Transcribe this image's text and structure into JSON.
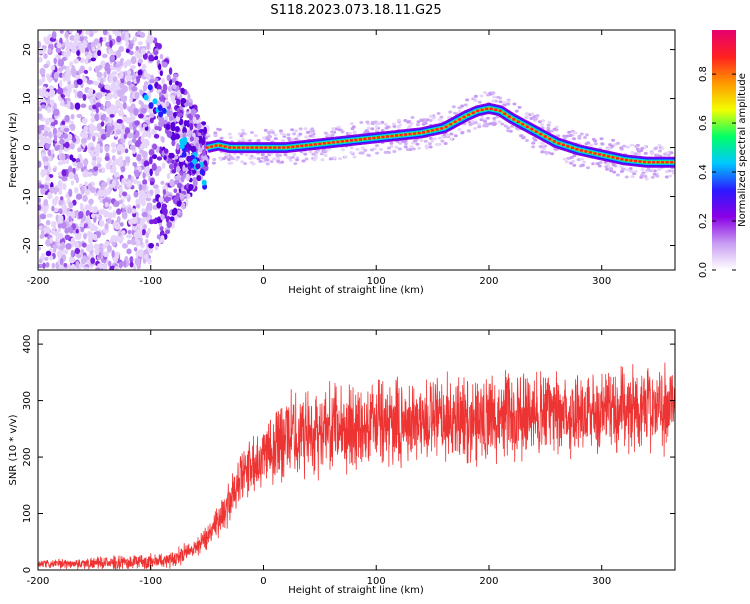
{
  "figure": {
    "title": "S118.2023.073.18.11.G25"
  },
  "chart_data": [
    {
      "type": "heatmap",
      "title": "",
      "xlabel": "Height of straight line (km)",
      "ylabel": "Frequency (Hz)",
      "xlim": [
        -200,
        365
      ],
      "ylim": [
        -25,
        24
      ],
      "x_ticks": [
        "-200",
        "-100",
        "0",
        "100",
        "200",
        "300"
      ],
      "x_tick_values": [
        -200,
        -100,
        0,
        100,
        200,
        300
      ],
      "y_ticks": [
        "20",
        "10",
        "0",
        "-10",
        "-20"
      ],
      "y_tick_values": [
        20,
        10,
        0,
        -10,
        -20
      ],
      "colorbar": {
        "label": "Normalized spectral amplitude",
        "range": [
          0,
          0.98
        ],
        "ticks": [
          "0.0",
          "0.2",
          "0.4",
          "0.6",
          "0.8"
        ],
        "tick_values": [
          0.0,
          0.2,
          0.4,
          0.6,
          0.8
        ],
        "colormap": [
          "#ffffff",
          "#c89cf2",
          "#8a00e6",
          "#2a1aff",
          "#00c8ff",
          "#00ff66",
          "#f2ff00",
          "#ff9900",
          "#ff2020",
          "#e60070"
        ]
      },
      "ridge": {
        "x": [
          -50,
          -40,
          -30,
          -20,
          0,
          20,
          40,
          60,
          80,
          100,
          120,
          140,
          160,
          180,
          190,
          200,
          210,
          220,
          240,
          260,
          280,
          300,
          320,
          340,
          365
        ],
        "y": [
          0,
          0.5,
          0,
          0,
          0,
          0,
          0.5,
          1,
          1.5,
          2,
          2.5,
          3,
          4,
          6.5,
          7.5,
          8,
          7.5,
          6,
          3.5,
          1,
          -0.5,
          -1.5,
          -2.5,
          -3,
          -3
        ]
      },
      "noise_region_x": [
        -200,
        -100
      ],
      "transition_region_x": [
        -100,
        -50
      ]
    },
    {
      "type": "line",
      "title": "",
      "xlabel": "Height of straight line (km)",
      "ylabel": "SNR (10 * v/v)",
      "xlim": [
        -200,
        365
      ],
      "ylim": [
        0,
        425
      ],
      "x_ticks": [
        "-200",
        "-100",
        "0",
        "100",
        "200",
        "300"
      ],
      "x_tick_values": [
        -200,
        -100,
        0,
        100,
        200,
        300
      ],
      "y_ticks": [
        "0",
        "100",
        "200",
        "300",
        "400"
      ],
      "y_tick_values": [
        0,
        100,
        200,
        300,
        400
      ],
      "line_color": "#ee3333",
      "series": [
        {
          "x": [
            -200,
            -150,
            -100,
            -80,
            -60,
            -50,
            -40,
            -30,
            -20,
            -10,
            0,
            10,
            20,
            30,
            40,
            60,
            80,
            100,
            120,
            140,
            160,
            180,
            200,
            220,
            240,
            260,
            280,
            300,
            320,
            340,
            365
          ],
          "y": [
            10,
            12,
            15,
            20,
            40,
            60,
            90,
            120,
            160,
            190,
            210,
            225,
            235,
            240,
            245,
            250,
            255,
            258,
            260,
            262,
            265,
            268,
            270,
            272,
            275,
            278,
            280,
            282,
            285,
            288,
            290
          ]
        }
      ],
      "noise_amplitude_x": [
        -200,
        -60,
        20,
        365
      ],
      "noise_amplitude": [
        8,
        20,
        90,
        90
      ]
    }
  ]
}
